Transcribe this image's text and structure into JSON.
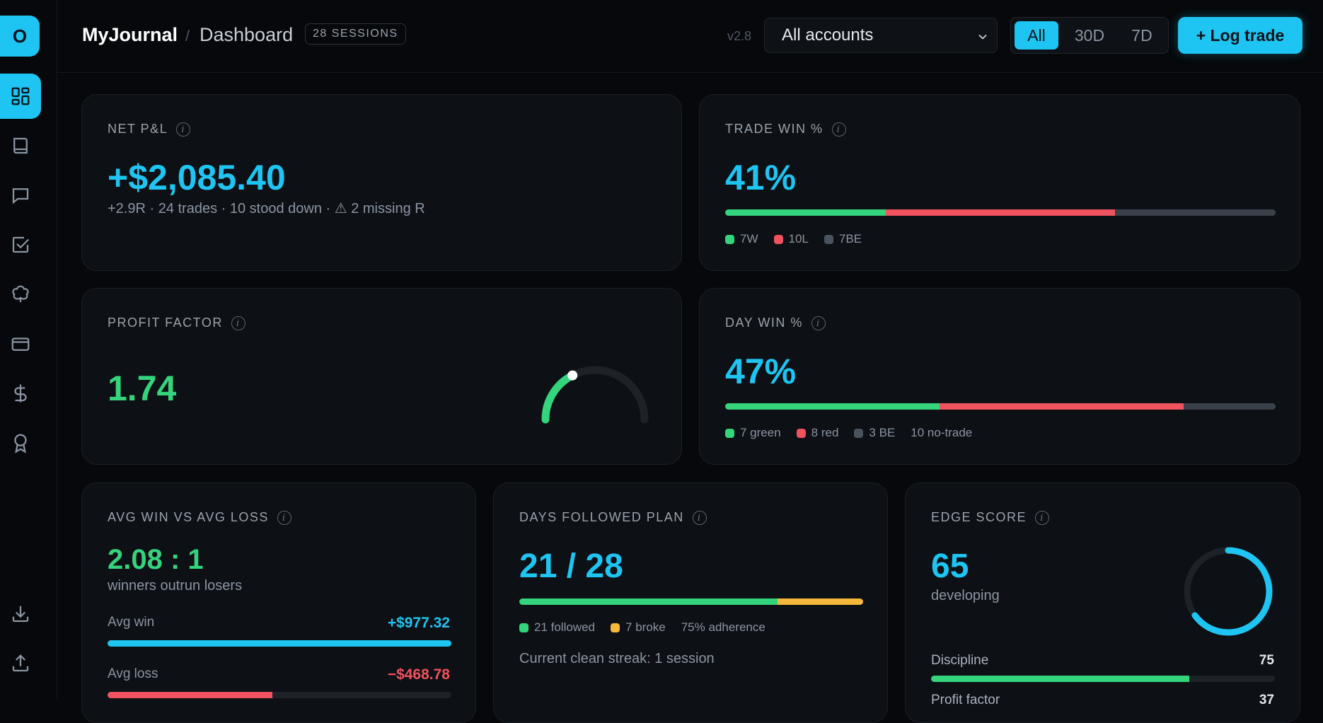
{
  "app": {
    "logo_letter": "O",
    "brand": "MyJournal",
    "crumb": "Dashboard",
    "sessions": "28 SESSIONS",
    "version": "v2.8"
  },
  "account_select": {
    "value": "All accounts"
  },
  "range": {
    "options": [
      "All",
      "30D",
      "7D"
    ],
    "selected": "All"
  },
  "log_button": "+ Log trade",
  "sidebar": {
    "icons": [
      "dashboard-icon",
      "book-icon",
      "chat-icon",
      "checklist-icon",
      "clover-icon",
      "card-icon",
      "dollar-icon",
      "award-icon",
      "download-icon",
      "upload-icon"
    ]
  },
  "net_pnl": {
    "title": "NET P&L",
    "value": "+$2,085.40",
    "sub": "+2.9R · 24 trades · 10 stood down · ⚠ 2 missing R"
  },
  "trade_win": {
    "title": "TRADE WIN %",
    "value": "41%",
    "wins": 7,
    "losses": 10,
    "be": 7,
    "w_label": "7W",
    "l_label": "10L",
    "be_label": "7BE"
  },
  "profit_factor": {
    "title": "PROFIT FACTOR",
    "value": "1.74",
    "gauge_fraction": 0.35
  },
  "day_win": {
    "title": "DAY WIN %",
    "value": "47%",
    "green": 7,
    "red": 8,
    "be": 3,
    "green_label": "7 green",
    "red_label": "8 red",
    "be_label": "3 BE",
    "no_trade_label": "10 no-trade"
  },
  "avg_win_loss": {
    "title": "AVG WIN VS AVG LOSS",
    "ratio": "2.08 : 1",
    "sub": "winners outrun losers",
    "win_label": "Avg win",
    "win_value": "+$977.32",
    "win_fraction": 1.0,
    "loss_label": "Avg loss",
    "loss_value": "−$468.78",
    "loss_fraction": 0.48
  },
  "plan": {
    "title": "DAYS FOLLOWED PLAN",
    "value": "21 / 28",
    "followed": 21,
    "broke": 7,
    "followed_label": "21 followed",
    "broke_label": "7 broke",
    "adherence_label": "75% adherence",
    "streak": "Current clean streak: 1 session"
  },
  "edge": {
    "title": "EDGE SCORE",
    "value": "65",
    "sub": "developing",
    "score": 65,
    "rows": [
      {
        "label": "Discipline",
        "value": "75",
        "fraction": 0.75
      },
      {
        "label": "Profit factor",
        "value": "37",
        "fraction": 0.37
      }
    ]
  },
  "colors": {
    "accent": "#1ec4f2",
    "green": "#34d47d",
    "red": "#f0525e",
    "amber": "#f5b83d",
    "grey": "#3a414b"
  }
}
